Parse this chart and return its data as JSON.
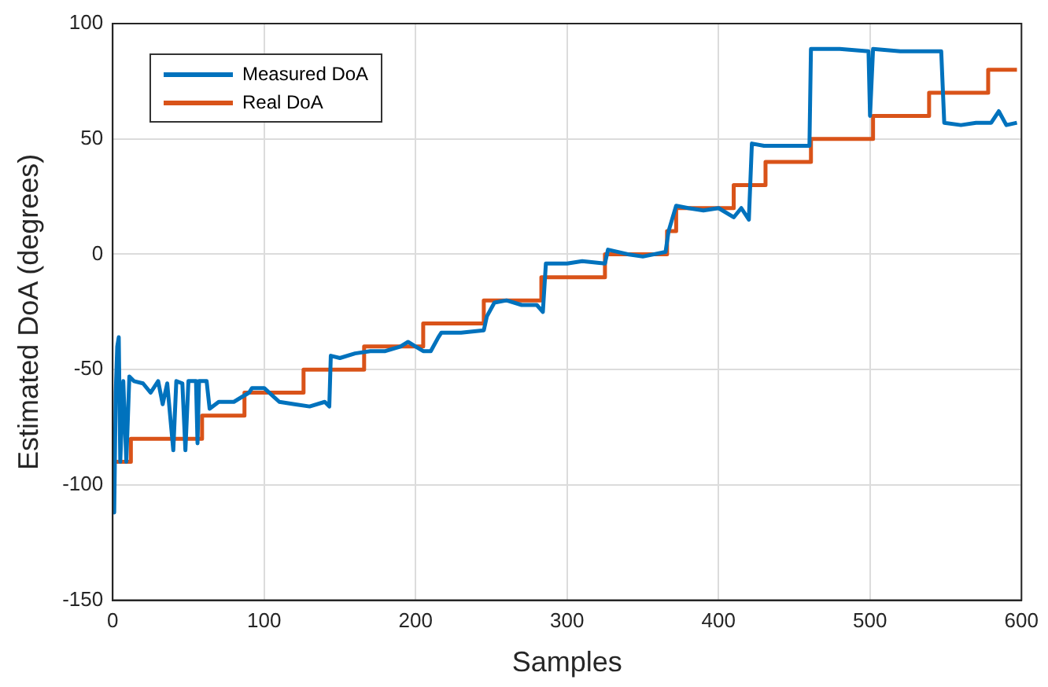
{
  "chart_data": {
    "type": "line",
    "xlabel": "Samples",
    "ylabel": "Estimated DoA (degrees)",
    "xlim": [
      0,
      600
    ],
    "xticks": [
      0,
      100,
      200,
      300,
      400,
      500,
      600
    ],
    "ylim": [
      -150,
      100
    ],
    "yticks": [
      -150,
      -100,
      -50,
      0,
      50,
      100
    ],
    "grid": true,
    "legend": "top left",
    "marker": "none",
    "line_style": "solid",
    "series": [
      {
        "name": "Measured DoA",
        "color": "#0072bd",
        "x": [
          0,
          1,
          2,
          3,
          4,
          5,
          7,
          9,
          11,
          14,
          20,
          25,
          30,
          33,
          36,
          40,
          42,
          46,
          48,
          50,
          55,
          56,
          57,
          62,
          64,
          70,
          80,
          90,
          92,
          100,
          110,
          120,
          130,
          140,
          143,
          144,
          150,
          160,
          170,
          180,
          190,
          195,
          200,
          205,
          210,
          215,
          217,
          230,
          245,
          247,
          252,
          260,
          270,
          280,
          284,
          286,
          300,
          310,
          325,
          327,
          340,
          350,
          365,
          367,
          372,
          380,
          390,
          400,
          410,
          415,
          420,
          422,
          430,
          440,
          460,
          461,
          480,
          499,
          500,
          502,
          520,
          547,
          549,
          560,
          570,
          580,
          585,
          590,
          597
        ],
        "values": [
          -90,
          -112,
          -60,
          -40,
          -36,
          -90,
          -55,
          -90,
          -53,
          -55,
          -56,
          -60,
          -55,
          -65,
          -56,
          -85,
          -55,
          -56,
          -85,
          -55,
          -55,
          -82,
          -55,
          -55,
          -67,
          -64,
          -64,
          -60,
          -58,
          -58,
          -64,
          -65,
          -66,
          -64,
          -66,
          -44,
          -45,
          -43,
          -42,
          -42,
          -40,
          -38,
          -40,
          -42,
          -42,
          -36,
          -34,
          -34,
          -33,
          -27,
          -21,
          -20,
          -22,
          -22,
          -25,
          -4,
          -4,
          -3,
          -4,
          2,
          0,
          -1,
          1,
          10,
          21,
          20,
          19,
          20,
          16,
          20,
          15,
          48,
          47,
          47,
          47,
          89,
          89,
          88,
          60,
          89,
          88,
          88,
          57,
          56,
          57,
          57,
          62,
          56,
          57
        ]
      },
      {
        "name": "Real DoA",
        "color": "#d95319",
        "x": [
          0,
          12,
          12,
          59,
          59,
          87,
          87,
          126,
          126,
          166,
          166,
          205,
          205,
          245,
          245,
          283,
          283,
          325,
          325,
          366,
          366,
          372,
          372,
          410,
          410,
          431,
          431,
          461,
          461,
          502,
          502,
          539,
          539,
          578,
          578,
          597
        ],
        "values": [
          -90,
          -90,
          -80,
          -80,
          -70,
          -70,
          -60,
          -60,
          -50,
          -50,
          -40,
          -40,
          -30,
          -30,
          -20,
          -20,
          -10,
          -10,
          0,
          0,
          10,
          10,
          20,
          20,
          30,
          30,
          40,
          40,
          50,
          50,
          60,
          60,
          70,
          70,
          80,
          80
        ]
      }
    ]
  }
}
